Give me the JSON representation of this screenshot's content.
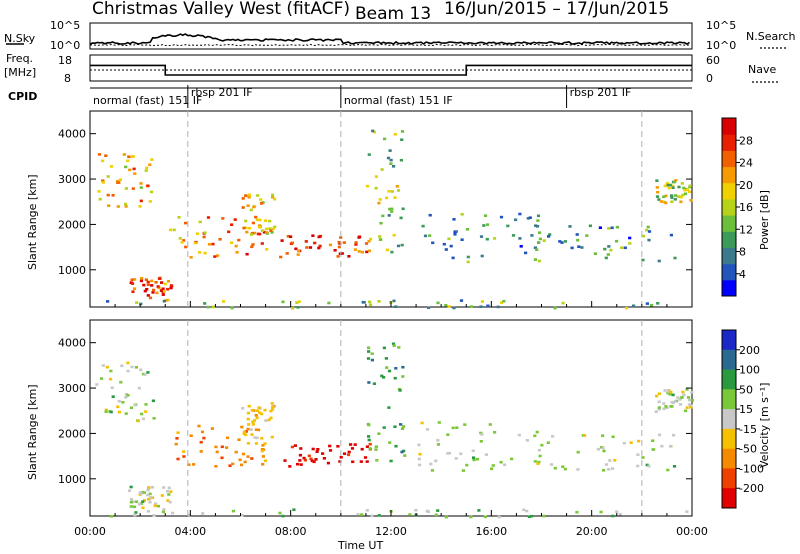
{
  "header": {
    "title": "Christmas Valley West (fitACF)",
    "beam": "Beam 13",
    "date_range": "16/Jun/2015 – 17/Jun/2015"
  },
  "top_strip": {
    "n_sky_label": "N.Sky",
    "n_search_label": "N.Search",
    "left_ticks": [
      "10^5",
      "10^0"
    ],
    "right_ticks": [
      "10^5",
      "10^0"
    ]
  },
  "freq_strip": {
    "freq_label": "Freq.",
    "freq_unit": "[MHz]",
    "nave_label": "Nave",
    "left_ticks": [
      "18",
      "8"
    ],
    "right_ticks": [
      "60",
      "0"
    ]
  },
  "cpid": {
    "label": "CPID",
    "segments": [
      {
        "text": "normal (fast)",
        "start_h": 0
      },
      {
        "text": "151 IF",
        "start_h": 3
      },
      {
        "text": "rbsp 201 IF",
        "start_h": 3.9
      },
      {
        "text": "normal (fast) 151 IF",
        "start_h": 10
      },
      {
        "text": "rbsp 201 IF",
        "start_h": 19
      }
    ]
  },
  "power_panel": {
    "ylabel": "Slant Range [km]",
    "colorbar_label": "Power [dB]",
    "colorbar_ticks": [
      "4",
      "8",
      "12",
      "16",
      "20",
      "24",
      "28"
    ],
    "colors": [
      "#0000ff",
      "#2255bb",
      "#3a7a8a",
      "#3c9a5a",
      "#6cbf3a",
      "#b8d21a",
      "#f0d000",
      "#f59a00",
      "#f06000",
      "#e82000",
      "#d80000"
    ]
  },
  "velocity_panel": {
    "ylabel": "Slant Range [km]",
    "colorbar_label": "Velocity [m s⁻¹]",
    "colorbar_ticks": [
      "200",
      "100",
      "50",
      "15",
      "-15",
      "-50",
      "-100",
      "-200"
    ],
    "colors": [
      "#1a28c8",
      "#2a6a90",
      "#2a9a40",
      "#7ac83a",
      "#c8c8c8",
      "#f5c000",
      "#f58a00",
      "#f04000",
      "#e00000"
    ]
  },
  "x_axis": {
    "label": "Time UT",
    "ticks": [
      "00:00",
      "04:00",
      "08:00",
      "12:00",
      "16:00",
      "20:00",
      "00:00"
    ]
  },
  "y_axis_ticks": [
    "1000",
    "2000",
    "3000",
    "4000"
  ],
  "chart_data": {
    "type": "heatmap",
    "title": "Christmas Valley West (fitACF)",
    "subtitle": "Beam 13 16/Jun/2015 – 17/Jun/2015",
    "xlabel": "Time UT",
    "x_range_hours": [
      0,
      24
    ],
    "y_range_km": [
      180,
      4500
    ],
    "freq_steps": [
      {
        "start_h": 0,
        "end_h": 3,
        "freq_mhz": 14.5
      },
      {
        "start_h": 3,
        "end_h": 15,
        "freq_mhz": 10.5
      },
      {
        "start_h": 15,
        "end_h": 24,
        "freq_mhz": 14.5
      }
    ],
    "scatter_regions": [
      {
        "t0": 0.2,
        "t1": 2.5,
        "r0": 2300,
        "r1": 3600,
        "power_db": 20,
        "velocity": 0
      },
      {
        "t0": 1.5,
        "t1": 3.2,
        "r0": 350,
        "r1": 850,
        "power_db": 26,
        "velocity": 0
      },
      {
        "t0": 3.0,
        "t1": 7.0,
        "r0": 1300,
        "r1": 2200,
        "power_db": 22,
        "velocity": -100
      },
      {
        "t0": 6.0,
        "t1": 7.3,
        "r0": 1800,
        "r1": 2700,
        "power_db": 20,
        "velocity": -50
      },
      {
        "t0": 7.5,
        "t1": 11.2,
        "r0": 1300,
        "r1": 1800,
        "power_db": 28,
        "velocity": -200
      },
      {
        "t0": 11.0,
        "t1": 12.5,
        "r0": 1400,
        "r1": 4100,
        "power_db": 14,
        "velocity": 50
      },
      {
        "t0": 13.0,
        "t1": 18.0,
        "r0": 1200,
        "r1": 2300,
        "power_db": 10,
        "velocity": 0
      },
      {
        "t0": 17.5,
        "t1": 23.5,
        "r0": 1200,
        "r1": 2000,
        "power_db": 10,
        "velocity": 0
      },
      {
        "t0": 22.5,
        "t1": 24.0,
        "r0": 2500,
        "r1": 3000,
        "power_db": 16,
        "velocity": 0
      },
      {
        "t0": 0.0,
        "t1": 24.0,
        "r0": 180,
        "r1": 350,
        "power_db": 12,
        "velocity": 15
      }
    ]
  }
}
